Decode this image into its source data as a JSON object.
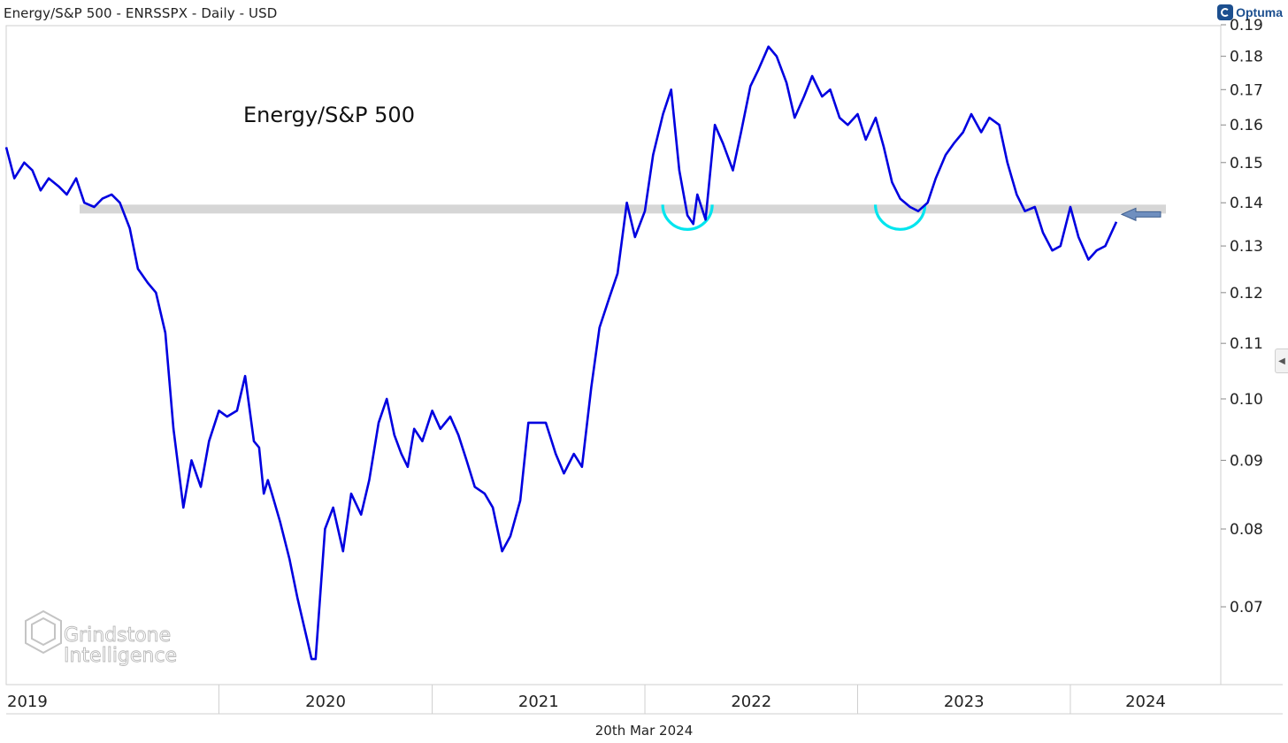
{
  "header": {
    "title": "Energy/S&P 500 - ENRSSPX - Daily - USD",
    "brand": "Optuma"
  },
  "footer": {
    "date": "20th Mar 2024"
  },
  "watermark": {
    "line1": "Grindstone",
    "line2": "Intelligence"
  },
  "colors": {
    "line": "#0000e0",
    "band": "#d6d6d6",
    "arc": "#00e5ee",
    "arrow": "#6f8fbf"
  },
  "chart_data": {
    "type": "line",
    "title": "",
    "xlabel": "",
    "ylabel": "",
    "y_scale": "log",
    "ylim": [
      0.062,
      0.19
    ],
    "xlim": [
      "2019-01-01",
      "2024-03-20"
    ],
    "grid": false,
    "annotations": {
      "label": "Energy/S&P 500",
      "resistance_band": 0.1385,
      "arrow_level": 0.1385,
      "rounded_bottoms": [
        "2022-03",
        "2023-03"
      ]
    },
    "y_ticks": [
      0.07,
      0.08,
      0.09,
      0.1,
      0.11,
      0.12,
      0.13,
      0.14,
      0.15,
      0.16,
      0.17,
      0.18,
      0.19
    ],
    "y_tick_labels": [
      "0.07",
      "0.08",
      "0.09",
      "0.10",
      "0.11",
      "0.12",
      "0.13",
      "0.14",
      "0.15",
      "0.16",
      "0.17",
      "0.18",
      "0.19"
    ],
    "x_labels": [
      "2019",
      "2020",
      "2021",
      "2022",
      "2023",
      "2024"
    ],
    "series": [
      {
        "name": "",
        "x": [
          "2019-01-01",
          "2019-01-15",
          "2019-02-01",
          "2019-02-15",
          "2019-03-01",
          "2019-03-15",
          "2019-04-01",
          "2019-04-15",
          "2019-05-01",
          "2019-05-15",
          "2019-06-01",
          "2019-06-15",
          "2019-07-01",
          "2019-07-15",
          "2019-08-01",
          "2019-08-15",
          "2019-09-01",
          "2019-09-15",
          "2019-10-01",
          "2019-10-15",
          "2019-11-01",
          "2019-11-15",
          "2019-12-01",
          "2019-12-15",
          "2020-01-01",
          "2020-01-15",
          "2020-02-01",
          "2020-02-15",
          "2020-03-01",
          "2020-03-10",
          "2020-03-18",
          "2020-03-25",
          "2020-04-01",
          "2020-04-15",
          "2020-05-01",
          "2020-05-15",
          "2020-06-01",
          "2020-06-08",
          "2020-06-15",
          "2020-07-01",
          "2020-07-15",
          "2020-08-01",
          "2020-08-15",
          "2020-09-01",
          "2020-09-15",
          "2020-10-01",
          "2020-10-15",
          "2020-10-28",
          "2020-11-09",
          "2020-11-20",
          "2020-12-01",
          "2020-12-15",
          "2021-01-01",
          "2021-01-15",
          "2021-02-01",
          "2021-02-15",
          "2021-03-01",
          "2021-03-15",
          "2021-04-01",
          "2021-04-15",
          "2021-05-01",
          "2021-05-15",
          "2021-06-01",
          "2021-06-15",
          "2021-07-01",
          "2021-07-15",
          "2021-08-01",
          "2021-08-15",
          "2021-09-01",
          "2021-09-15",
          "2021-10-01",
          "2021-10-15",
          "2021-11-01",
          "2021-11-15",
          "2021-12-01",
          "2021-12-15",
          "2022-01-01",
          "2022-01-15",
          "2022-02-01",
          "2022-02-15",
          "2022-03-01",
          "2022-03-15",
          "2022-03-25",
          "2022-04-01",
          "2022-04-15",
          "2022-05-01",
          "2022-05-15",
          "2022-06-01",
          "2022-06-15",
          "2022-07-01",
          "2022-07-15",
          "2022-08-01",
          "2022-08-15",
          "2022-09-01",
          "2022-09-15",
          "2022-10-01",
          "2022-10-15",
          "2022-11-01",
          "2022-11-15",
          "2022-12-01",
          "2022-12-15",
          "2023-01-01",
          "2023-01-15",
          "2023-02-01",
          "2023-02-15",
          "2023-03-01",
          "2023-03-15",
          "2023-04-01",
          "2023-04-15",
          "2023-05-01",
          "2023-05-15",
          "2023-06-01",
          "2023-06-15",
          "2023-07-01",
          "2023-07-15",
          "2023-08-01",
          "2023-08-15",
          "2023-09-01",
          "2023-09-15",
          "2023-10-01",
          "2023-10-15",
          "2023-11-01",
          "2023-11-15",
          "2023-12-01",
          "2023-12-15",
          "2024-01-01",
          "2024-01-15",
          "2024-02-01",
          "2024-02-15",
          "2024-03-01",
          "2024-03-20"
        ],
        "values": [
          0.154,
          0.146,
          0.15,
          0.148,
          0.143,
          0.146,
          0.144,
          0.142,
          0.146,
          0.14,
          0.139,
          0.141,
          0.142,
          0.14,
          0.134,
          0.125,
          0.122,
          0.12,
          0.112,
          0.095,
          0.083,
          0.09,
          0.086,
          0.093,
          0.098,
          0.097,
          0.098,
          0.104,
          0.093,
          0.092,
          0.085,
          0.087,
          0.085,
          0.081,
          0.076,
          0.071,
          0.066,
          0.064,
          0.064,
          0.08,
          0.083,
          0.077,
          0.085,
          0.082,
          0.087,
          0.096,
          0.1,
          0.094,
          0.091,
          0.089,
          0.095,
          0.093,
          0.098,
          0.095,
          0.097,
          0.094,
          0.09,
          0.086,
          0.085,
          0.083,
          0.077,
          0.079,
          0.084,
          0.096,
          0.096,
          0.096,
          0.091,
          0.088,
          0.091,
          0.089,
          0.102,
          0.113,
          0.119,
          0.124,
          0.14,
          0.132,
          0.138,
          0.152,
          0.163,
          0.17,
          0.148,
          0.137,
          0.135,
          0.142,
          0.136,
          0.16,
          0.155,
          0.148,
          0.158,
          0.171,
          0.176,
          0.183,
          0.18,
          0.172,
          0.162,
          0.168,
          0.174,
          0.168,
          0.17,
          0.162,
          0.16,
          0.163,
          0.156,
          0.162,
          0.154,
          0.145,
          0.141,
          0.139,
          0.138,
          0.14,
          0.146,
          0.152,
          0.155,
          0.158,
          0.163,
          0.158,
          0.162,
          0.16,
          0.15,
          0.142,
          0.138,
          0.139,
          0.133,
          0.129,
          0.13,
          0.139,
          0.132,
          0.127,
          0.129,
          0.13,
          0.1355
        ]
      }
    ]
  }
}
